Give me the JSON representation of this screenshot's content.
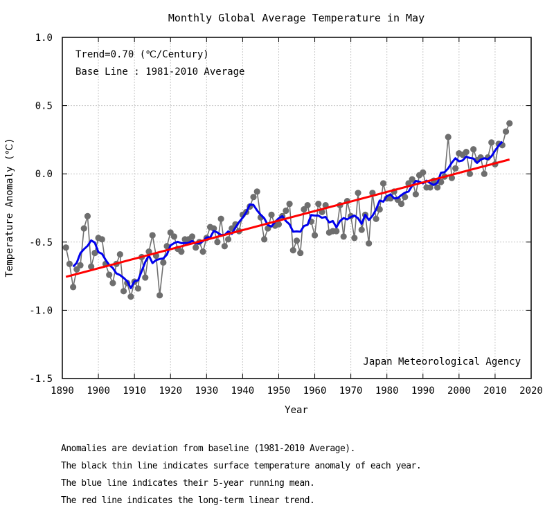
{
  "chart_data": {
    "type": "line",
    "title": "Monthly Global Average Temperature in May",
    "xlabel": "Year",
    "ylabel": "Temperature Anomaly (℃)",
    "xlim": [
      1890,
      2020
    ],
    "ylim": [
      -1.5,
      1.0
    ],
    "xticks": [
      1890,
      1900,
      1910,
      1920,
      1930,
      1940,
      1950,
      1960,
      1970,
      1980,
      1990,
      2000,
      2010,
      2020
    ],
    "xtick_labels": [
      "1890",
      "1900",
      "1910",
      "1920",
      "1930",
      "1940",
      "1950",
      "1960",
      "1970",
      "1980",
      "1990",
      "2000",
      "2010",
      "2020"
    ],
    "yticks": [
      1.0,
      0.5,
      0.0,
      -0.5,
      -1.0,
      -1.5
    ],
    "ytick_labels": [
      "1.0",
      "0.5",
      "0.0",
      "-0.5",
      "-1.0",
      "-1.5"
    ],
    "grid": true,
    "annotations": {
      "trend": "Trend=0.70 (℃/Century)",
      "baseline": "Base Line : 1981-2010 Average",
      "source": "Japan Meteorological Agency"
    },
    "series": [
      {
        "name": "Annual anomaly",
        "color": "#707070",
        "marker_color": "#6e6e6e",
        "x_start": 1891,
        "values": [
          -0.54,
          -0.66,
          -0.83,
          -0.7,
          -0.67,
          -0.4,
          -0.31,
          -0.68,
          -0.58,
          -0.47,
          -0.48,
          -0.66,
          -0.74,
          -0.8,
          -0.66,
          -0.59,
          -0.86,
          -0.8,
          -0.9,
          -0.79,
          -0.84,
          -0.61,
          -0.76,
          -0.57,
          -0.45,
          -0.6,
          -0.89,
          -0.65,
          -0.53,
          -0.43,
          -0.46,
          -0.55,
          -0.57,
          -0.48,
          -0.48,
          -0.46,
          -0.54,
          -0.5,
          -0.57,
          -0.47,
          -0.39,
          -0.4,
          -0.5,
          -0.33,
          -0.53,
          -0.48,
          -0.4,
          -0.37,
          -0.42,
          -0.3,
          -0.28,
          -0.24,
          -0.17,
          -0.13,
          -0.32,
          -0.48,
          -0.4,
          -0.3,
          -0.38,
          -0.37,
          -0.31,
          -0.27,
          -0.22,
          -0.56,
          -0.49,
          -0.58,
          -0.26,
          -0.23,
          -0.35,
          -0.45,
          -0.22,
          -0.28,
          -0.23,
          -0.43,
          -0.42,
          -0.42,
          -0.23,
          -0.46,
          -0.2,
          -0.31,
          -0.47,
          -0.14,
          -0.41,
          -0.3,
          -0.51,
          -0.14,
          -0.33,
          -0.26,
          -0.07,
          -0.18,
          -0.18,
          -0.13,
          -0.19,
          -0.22,
          -0.17,
          -0.07,
          -0.04,
          -0.15,
          -0.01,
          0.01,
          -0.1,
          -0.1,
          -0.05,
          -0.1,
          -0.06,
          -0.02,
          0.27,
          -0.03,
          0.04,
          0.15,
          0.14,
          0.16,
          0.0,
          0.18,
          0.1,
          0.12,
          0.0,
          0.12,
          0.23,
          0.07,
          0.22,
          0.21,
          0.31,
          0.37
        ]
      },
      {
        "name": "5-year running mean",
        "color": "#0000ee",
        "x_start": 1893
      },
      {
        "name": "Long-term linear trend",
        "color": "#ff0000",
        "x": [
          1891,
          2014
        ],
        "values": [
          -0.755,
          0.105
        ]
      }
    ]
  },
  "notes": [
    "Anomalies are deviation from baseline (1981-2010 Average).",
    "The black thin line indicates surface temperature anomaly of each year.",
    "The blue line indicates their 5-year running mean.",
    "The red line indicates the long-term linear trend."
  ]
}
